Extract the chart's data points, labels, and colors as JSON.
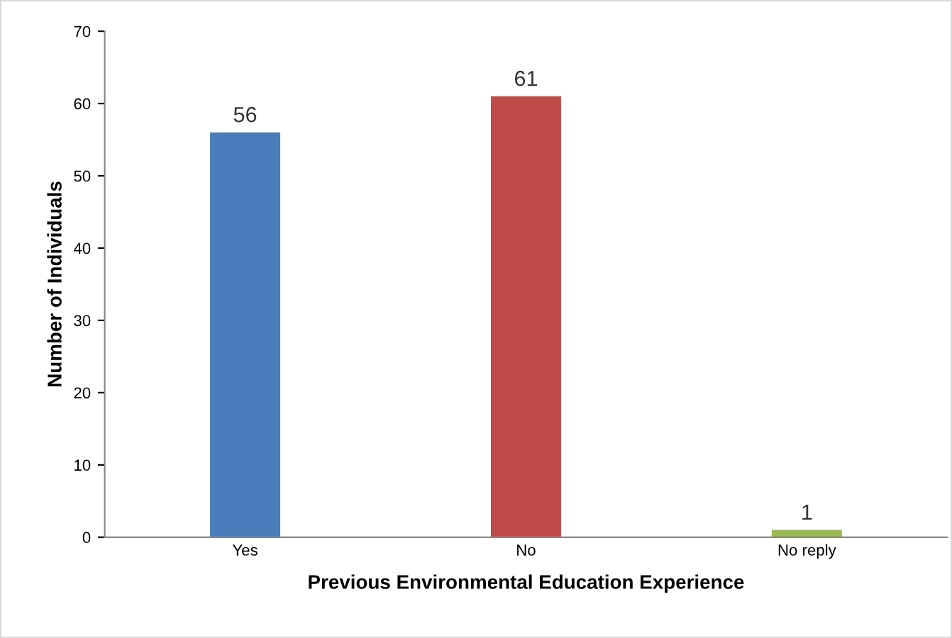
{
  "chart_data": {
    "type": "bar",
    "xlabel": "Previous Environmental Education Experience",
    "ylabel": "Number of Individuals",
    "categories": [
      "Yes",
      "No",
      "No reply"
    ],
    "values": [
      56,
      61,
      1
    ],
    "colors": [
      "#4a7ebb",
      "#be4b48",
      "#98b954"
    ],
    "ylim": [
      0,
      70
    ],
    "yticks": [
      0,
      10,
      20,
      30,
      40,
      50,
      60,
      70
    ],
    "data_labels": true,
    "grid": false,
    "legend": false
  }
}
